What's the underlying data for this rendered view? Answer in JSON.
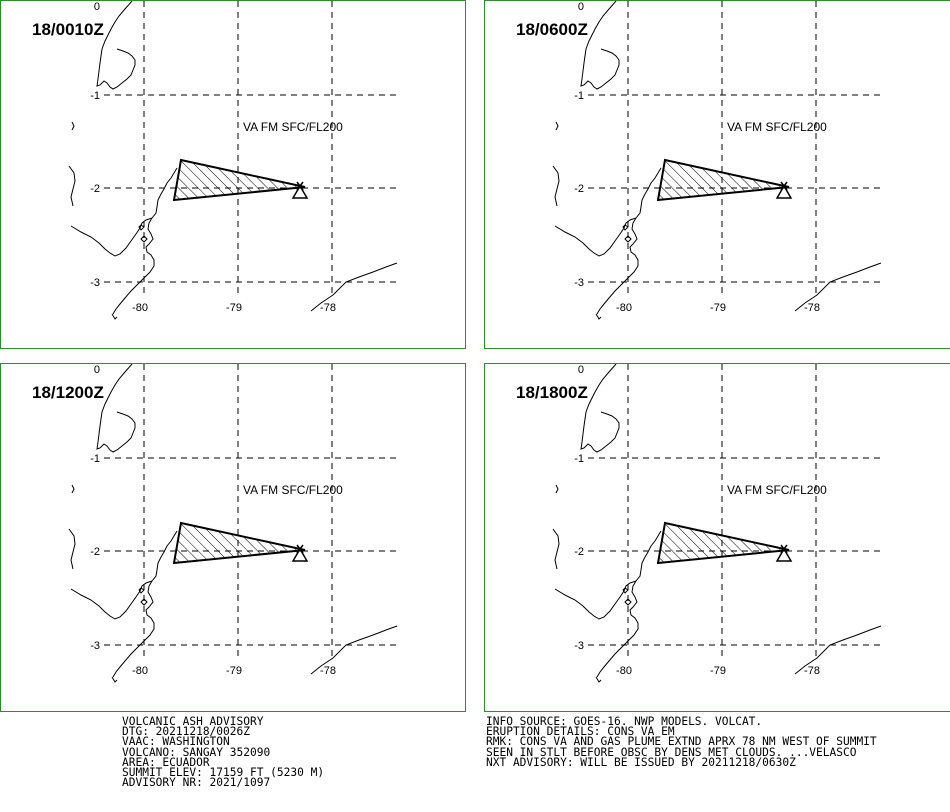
{
  "panels": [
    {
      "time": "18/0010Z",
      "lat_labels": [
        "0",
        "-1",
        "-2",
        "-3"
      ],
      "lon_labels": [
        "-80",
        "-79",
        "-78"
      ],
      "ash_label": "VA FM SFC/FL200"
    },
    {
      "time": "18/0600Z",
      "lat_labels": [
        "0",
        "-1",
        "-2",
        "-3"
      ],
      "lon_labels": [
        "-80",
        "-79",
        "-78"
      ],
      "ash_label": "VA FM SFC/FL200"
    },
    {
      "time": "18/1200Z",
      "lat_labels": [
        "0",
        "-1",
        "-2",
        "-3"
      ],
      "lon_labels": [
        "-80",
        "-79",
        "-78"
      ],
      "ash_label": "VA FM SFC/FL200"
    },
    {
      "time": "18/1800Z",
      "lat_labels": [
        "0",
        "-1",
        "-2",
        "-3"
      ],
      "lon_labels": [
        "-80",
        "-79",
        "-78"
      ],
      "ash_label": "VA FM SFC/FL200"
    }
  ],
  "advisory_left": [
    "VOLCANIC ASH ADVISORY",
    "DTG: 20211218/0026Z",
    "VAAC: WASHINGTON",
    "VOLCANO: SANGAY 352090",
    "AREA: ECUADOR",
    "SUMMIT ELEV: 17159 FT (5230 M)",
    "ADVISORY NR: 2021/1097"
  ],
  "advisory_right": [
    "INFO SOURCE: GOES-16. NWP MODELS. VOLCAT.",
    "ERUPTION DETAILS: CONS VA EM",
    "RMK: CONS VA AND GAS PLUME EXTND APRX 78 NM WEST OF SUMMIT",
    "SEEN IN STLT BEFORE OBSC BY DENS MET CLOUDS. ...VELASCO",
    "NXT ADVISORY: WILL BE ISSUED BY 20211218/0630Z"
  ],
  "colors": {
    "frame": "#2e8b2e",
    "ink": "#000000"
  },
  "symbols": {
    "volcano": "triangle-volcano-icon"
  }
}
